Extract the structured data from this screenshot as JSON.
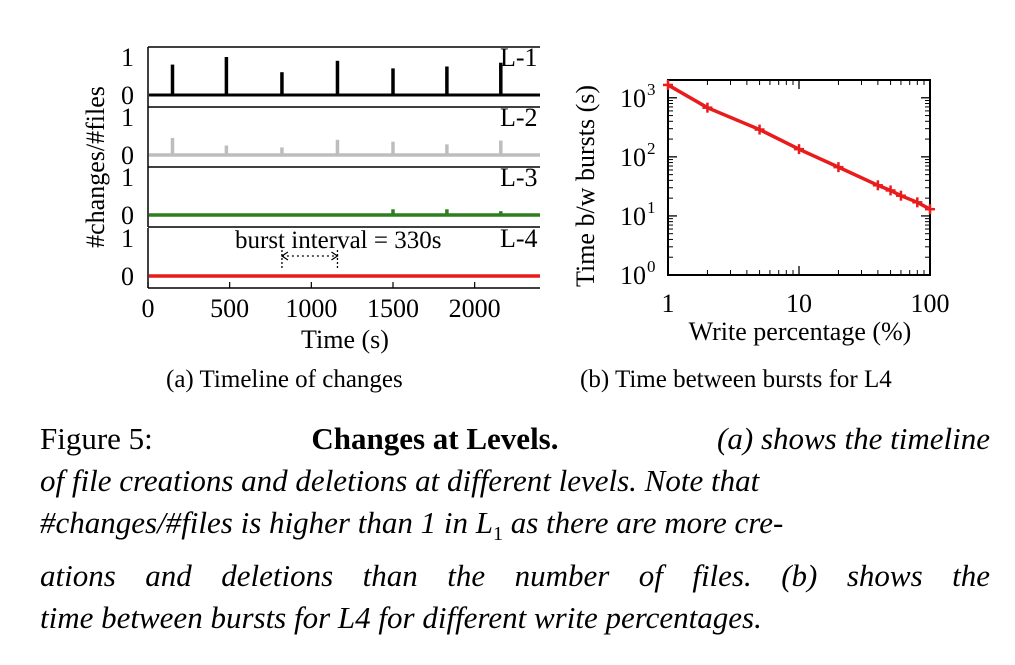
{
  "chart_data": [
    {
      "type": "bar",
      "subplots": [
        {
          "label": "L-1",
          "color": "#000000",
          "ylim": [
            0,
            1
          ],
          "yticks": [
            "1",
            "0"
          ],
          "x": [
            150,
            480,
            820,
            1160,
            1500,
            1830,
            2160
          ],
          "values": [
            0.8,
            1.0,
            0.6,
            0.9,
            0.7,
            0.75,
            0.85
          ]
        },
        {
          "label": "L-2",
          "color": "#bdbdbd",
          "ylim": [
            0,
            1
          ],
          "yticks": [
            "1",
            "0"
          ],
          "x": [
            150,
            480,
            820,
            1160,
            1500,
            1830,
            2160
          ],
          "values": [
            0.45,
            0.25,
            0.2,
            0.4,
            0.35,
            0.28,
            0.38
          ]
        },
        {
          "label": "L-3",
          "color": "#2e7d1e",
          "ylim": [
            0,
            1
          ],
          "yticks": [
            "1",
            "0"
          ],
          "x": [
            150,
            480,
            820,
            1160,
            1500,
            1830,
            2160
          ],
          "values": [
            0.04,
            0.03,
            0.03,
            0.03,
            0.15,
            0.15,
            0.1
          ]
        },
        {
          "label": "L-4",
          "color": "#e81c1c",
          "ylim": [
            0,
            1
          ],
          "yticks": [
            "1",
            "0"
          ],
          "x": [
            150,
            480,
            820,
            1160,
            1500,
            1830,
            2160
          ],
          "values": [
            0.01,
            0.01,
            0.01,
            0.01,
            0.01,
            0.01,
            0.01
          ]
        }
      ],
      "xlabel": "Time (s)",
      "ylabel": "#changes/#files",
      "xlim": [
        0,
        2400
      ],
      "xticks": [
        "0",
        "500",
        "1000",
        "1500",
        "2000"
      ],
      "xtick_values": [
        0,
        500,
        1000,
        1500,
        2000
      ],
      "annotation": {
        "text": "burst interval = 330s",
        "from": 820,
        "to": 1160
      },
      "caption": "(a) Timeline of changes"
    },
    {
      "type": "line",
      "xscale": "log",
      "yscale": "log",
      "x": [
        1,
        2,
        5,
        10,
        20,
        40,
        50,
        60,
        80,
        100
      ],
      "series": [
        {
          "values": [
            1650,
            680,
            290,
            135,
            67,
            33,
            27,
            22,
            17,
            13
          ],
          "color": "#e81c1c"
        }
      ],
      "xlabel": "Write percentage (%)",
      "ylabel": "Time b/w bursts (s)",
      "xlim": [
        1,
        100
      ],
      "ylim": [
        1,
        2000
      ],
      "xticks": [
        "1",
        "10",
        "100"
      ],
      "xtick_values": [
        1,
        10,
        100
      ],
      "yticks": [
        "10",
        "10",
        "10",
        "10"
      ],
      "ytick_exponents": [
        "0",
        "1",
        "2",
        "3"
      ],
      "ytick_values": [
        1,
        10,
        100,
        1000
      ],
      "caption": "(b) Time between bursts for L4"
    }
  ],
  "caption": {
    "line1_prefix": "Figure 5:",
    "line1_bold": "Changes at Levels.",
    "line1_italic": "(a) shows the timeline",
    "line2": "of file creations and deletions at different levels. Note that",
    "line3_a": "#changes/#files is higher than 1 in L",
    "line3_sub": "1",
    "line3_b": " as there are more cre-",
    "line4": "ations and deletions than the number of files. (b) shows the",
    "line5": "time between bursts for L4 for different write percentages."
  }
}
